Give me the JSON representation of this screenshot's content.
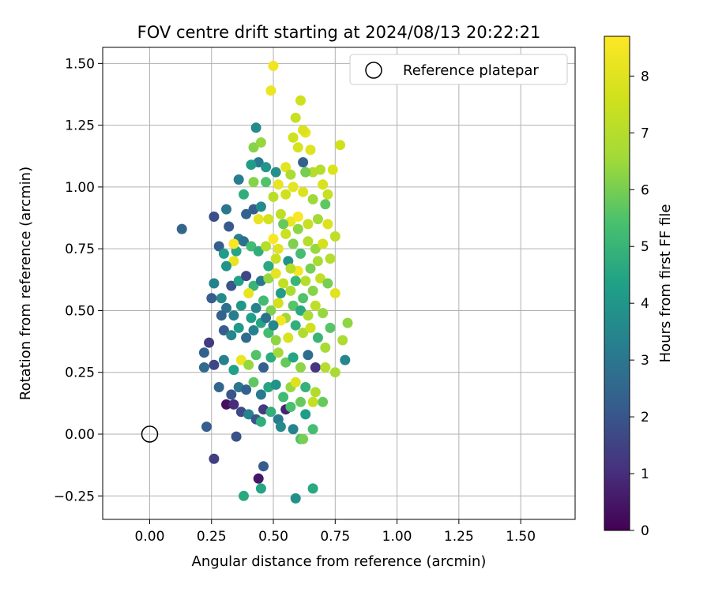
{
  "chart_data": {
    "type": "scatter",
    "title": "FOV centre drift starting at 2024/08/13 20:22:21",
    "xlabel": "Angular distance from reference (arcmin)",
    "ylabel": "Rotation from reference (arcmin)",
    "xlim": [
      -0.19,
      1.72
    ],
    "ylim": [
      -0.345,
      1.565
    ],
    "xticks": [
      "0.00",
      "0.25",
      "0.50",
      "0.75",
      "1.00",
      "1.25",
      "1.50"
    ],
    "yticks": [
      "−0.25",
      "0.00",
      "0.25",
      "0.50",
      "0.75",
      "1.00",
      "1.25",
      "1.50"
    ],
    "grid": true,
    "legend": {
      "position": "top-right",
      "entries": [
        "Reference platepar"
      ]
    },
    "colorbar": {
      "label": "Hours from first FF file",
      "colormap": "viridis",
      "range": [
        0,
        8.7
      ],
      "ticks": [
        "0",
        "1",
        "2",
        "3",
        "4",
        "5",
        "6",
        "7",
        "8"
      ]
    },
    "reference_point": {
      "x": 0.0,
      "y": 0.0,
      "label": "Reference platepar"
    },
    "series": [
      {
        "note_columns": "x, y, hours",
        "points": [
          [
            0.13,
            0.83,
            2.5
          ],
          [
            0.26,
            0.88,
            1.8
          ],
          [
            0.31,
            0.91,
            3.0
          ],
          [
            0.28,
            0.76,
            2.2
          ],
          [
            0.32,
            0.84,
            2.1
          ],
          [
            0.36,
            1.03,
            3.2
          ],
          [
            0.43,
            1.24,
            3.6
          ],
          [
            0.42,
            1.16,
            6.2
          ],
          [
            0.45,
            1.18,
            6.4
          ],
          [
            0.44,
            1.1,
            3.1
          ],
          [
            0.47,
            1.08,
            4.0
          ],
          [
            0.5,
            1.49,
            8.4
          ],
          [
            0.49,
            1.39,
            8.3
          ],
          [
            0.61,
            1.35,
            7.6
          ],
          [
            0.59,
            1.28,
            7.4
          ],
          [
            0.63,
            1.22,
            8.2
          ],
          [
            0.62,
            1.23,
            7.9
          ],
          [
            0.58,
            1.2,
            7.6
          ],
          [
            0.6,
            1.16,
            7.8
          ],
          [
            0.65,
            1.15,
            8.0
          ],
          [
            0.77,
            1.17,
            7.6
          ],
          [
            0.74,
            1.07,
            7.9
          ],
          [
            0.69,
            1.07,
            7.0
          ],
          [
            0.7,
            1.01,
            7.8
          ],
          [
            0.72,
            0.97,
            7.4
          ],
          [
            0.66,
            1.06,
            7.0
          ],
          [
            0.63,
            1.06,
            6.0
          ],
          [
            0.62,
            1.1,
            2.4
          ],
          [
            0.55,
            1.08,
            8.1
          ],
          [
            0.57,
            1.05,
            6.8
          ],
          [
            0.51,
            1.06,
            3.8
          ],
          [
            0.47,
            1.02,
            5.5
          ],
          [
            0.41,
            1.09,
            4.2
          ],
          [
            0.42,
            1.02,
            6.2
          ],
          [
            0.52,
            1.01,
            8.2
          ],
          [
            0.5,
            0.96,
            7.1
          ],
          [
            0.55,
            0.97,
            7.6
          ],
          [
            0.58,
            1.0,
            8.1
          ],
          [
            0.62,
            0.98,
            7.9
          ],
          [
            0.66,
            0.95,
            6.5
          ],
          [
            0.71,
            0.93,
            5.7
          ],
          [
            0.38,
            0.97,
            4.8
          ],
          [
            0.42,
            0.91,
            2.2
          ],
          [
            0.45,
            0.92,
            3.6
          ],
          [
            0.39,
            0.89,
            2.4
          ],
          [
            0.44,
            0.87,
            8.2
          ],
          [
            0.48,
            0.87,
            7.7
          ],
          [
            0.53,
            0.89,
            7.2
          ],
          [
            0.57,
            0.86,
            8.3
          ],
          [
            0.6,
            0.88,
            8.6
          ],
          [
            0.64,
            0.85,
            7.4
          ],
          [
            0.68,
            0.87,
            6.6
          ],
          [
            0.72,
            0.85,
            7.9
          ],
          [
            0.75,
            0.8,
            7.2
          ],
          [
            0.36,
            0.79,
            3.3
          ],
          [
            0.35,
            0.74,
            4.5
          ],
          [
            0.38,
            0.78,
            2.8
          ],
          [
            0.41,
            0.76,
            5.2
          ],
          [
            0.44,
            0.74,
            4.8
          ],
          [
            0.47,
            0.76,
            7.0
          ],
          [
            0.5,
            0.79,
            8.6
          ],
          [
            0.52,
            0.75,
            8.0
          ],
          [
            0.55,
            0.81,
            7.5
          ],
          [
            0.58,
            0.77,
            6.1
          ],
          [
            0.61,
            0.73,
            5.3
          ],
          [
            0.64,
            0.78,
            7.0
          ],
          [
            0.67,
            0.75,
            6.4
          ],
          [
            0.7,
            0.77,
            7.7
          ],
          [
            0.73,
            0.71,
            7.0
          ],
          [
            0.34,
            0.77,
            8.6
          ],
          [
            0.34,
            0.7,
            8.2
          ],
          [
            0.31,
            0.68,
            3.9
          ],
          [
            0.3,
            0.73,
            4.2
          ],
          [
            0.26,
            0.61,
            3.3
          ],
          [
            0.25,
            0.55,
            2.2
          ],
          [
            0.29,
            0.55,
            3.6
          ],
          [
            0.33,
            0.6,
            2.0
          ],
          [
            0.36,
            0.62,
            4.4
          ],
          [
            0.39,
            0.64,
            1.6
          ],
          [
            0.42,
            0.6,
            5.0
          ],
          [
            0.45,
            0.62,
            3.0
          ],
          [
            0.48,
            0.63,
            6.4
          ],
          [
            0.51,
            0.65,
            8.1
          ],
          [
            0.54,
            0.61,
            7.3
          ],
          [
            0.57,
            0.58,
            6.8
          ],
          [
            0.6,
            0.66,
            8.5
          ],
          [
            0.63,
            0.62,
            7.0
          ],
          [
            0.66,
            0.58,
            6.2
          ],
          [
            0.69,
            0.63,
            7.3
          ],
          [
            0.72,
            0.61,
            6.0
          ],
          [
            0.75,
            0.57,
            8.0
          ],
          [
            0.31,
            0.51,
            2.8
          ],
          [
            0.34,
            0.48,
            3.2
          ],
          [
            0.37,
            0.52,
            4.0
          ],
          [
            0.4,
            0.57,
            8.2
          ],
          [
            0.43,
            0.51,
            3.4
          ],
          [
            0.46,
            0.54,
            5.2
          ],
          [
            0.49,
            0.5,
            6.1
          ],
          [
            0.52,
            0.53,
            7.7
          ],
          [
            0.55,
            0.47,
            6.5
          ],
          [
            0.58,
            0.52,
            5.6
          ],
          [
            0.61,
            0.5,
            4.6
          ],
          [
            0.64,
            0.48,
            6.8
          ],
          [
            0.67,
            0.52,
            7.2
          ],
          [
            0.7,
            0.49,
            6.4
          ],
          [
            0.73,
            0.43,
            5.6
          ],
          [
            0.29,
            0.48,
            2.4
          ],
          [
            0.3,
            0.42,
            2.2
          ],
          [
            0.33,
            0.4,
            3.5
          ],
          [
            0.36,
            0.43,
            4.1
          ],
          [
            0.39,
            0.39,
            2.6
          ],
          [
            0.42,
            0.42,
            3.3
          ],
          [
            0.45,
            0.45,
            4.5
          ],
          [
            0.48,
            0.41,
            5.3
          ],
          [
            0.51,
            0.38,
            6.3
          ],
          [
            0.53,
            0.46,
            8.5
          ],
          [
            0.56,
            0.39,
            7.8
          ],
          [
            0.59,
            0.44,
            4.8
          ],
          [
            0.62,
            0.41,
            6.9
          ],
          [
            0.65,
            0.43,
            7.6
          ],
          [
            0.68,
            0.39,
            5.0
          ],
          [
            0.71,
            0.35,
            6.7
          ],
          [
            0.78,
            0.38,
            6.8
          ],
          [
            0.8,
            0.45,
            6.3
          ],
          [
            0.79,
            0.3,
            3.5
          ],
          [
            0.22,
            0.33,
            2.3
          ],
          [
            0.24,
            0.37,
            1.3
          ],
          [
            0.22,
            0.27,
            2.6
          ],
          [
            0.26,
            0.28,
            1.6
          ],
          [
            0.3,
            0.3,
            3.3
          ],
          [
            0.34,
            0.26,
            4.4
          ],
          [
            0.37,
            0.3,
            8.3
          ],
          [
            0.4,
            0.28,
            6.4
          ],
          [
            0.43,
            0.32,
            5.5
          ],
          [
            0.46,
            0.27,
            2.3
          ],
          [
            0.49,
            0.31,
            4.7
          ],
          [
            0.52,
            0.33,
            6.6
          ],
          [
            0.55,
            0.29,
            5.8
          ],
          [
            0.58,
            0.31,
            4.5
          ],
          [
            0.61,
            0.27,
            6.3
          ],
          [
            0.64,
            0.32,
            2.7
          ],
          [
            0.67,
            0.27,
            1.2
          ],
          [
            0.71,
            0.27,
            7.0
          ],
          [
            0.75,
            0.25,
            6.7
          ],
          [
            0.28,
            0.19,
            2.5
          ],
          [
            0.33,
            0.16,
            2.0
          ],
          [
            0.36,
            0.19,
            3.0
          ],
          [
            0.39,
            0.18,
            2.3
          ],
          [
            0.42,
            0.21,
            5.7
          ],
          [
            0.45,
            0.16,
            3.1
          ],
          [
            0.48,
            0.19,
            4.5
          ],
          [
            0.51,
            0.2,
            3.9
          ],
          [
            0.54,
            0.15,
            5.2
          ],
          [
            0.57,
            0.19,
            6.4
          ],
          [
            0.59,
            0.21,
            7.9
          ],
          [
            0.63,
            0.19,
            4.9
          ],
          [
            0.67,
            0.17,
            6.9
          ],
          [
            0.7,
            0.13,
            5.8
          ],
          [
            0.31,
            0.12,
            0.3
          ],
          [
            0.34,
            0.12,
            1.0
          ],
          [
            0.37,
            0.09,
            1.7
          ],
          [
            0.4,
            0.08,
            3.4
          ],
          [
            0.43,
            0.06,
            2.0
          ],
          [
            0.46,
            0.1,
            1.3
          ],
          [
            0.49,
            0.09,
            4.8
          ],
          [
            0.52,
            0.06,
            3.1
          ],
          [
            0.55,
            0.1,
            0.8
          ],
          [
            0.57,
            0.11,
            5.4
          ],
          [
            0.61,
            0.13,
            5.8
          ],
          [
            0.63,
            0.08,
            4.2
          ],
          [
            0.66,
            0.13,
            7.3
          ],
          [
            0.45,
            0.05,
            4.8
          ],
          [
            0.53,
            0.03,
            3.6
          ],
          [
            0.58,
            0.02,
            3.4
          ],
          [
            0.61,
            -0.02,
            5.4
          ],
          [
            0.62,
            -0.02,
            6.0
          ],
          [
            0.66,
            0.02,
            5.3
          ],
          [
            0.23,
            0.03,
            2.2
          ],
          [
            0.35,
            -0.01,
            1.9
          ],
          [
            0.26,
            -0.1,
            1.4
          ],
          [
            0.46,
            -0.13,
            2.2
          ],
          [
            0.44,
            -0.18,
            0.5
          ],
          [
            0.45,
            -0.22,
            4.5
          ],
          [
            0.38,
            -0.25,
            4.6
          ],
          [
            0.59,
            -0.26,
            3.8
          ],
          [
            0.66,
            -0.22,
            4.6
          ],
          [
            0.53,
            0.57,
            4.2
          ],
          [
            0.56,
            0.7,
            3.8
          ],
          [
            0.48,
            0.68,
            4.6
          ],
          [
            0.59,
            0.62,
            5.0
          ],
          [
            0.62,
            0.55,
            5.5
          ],
          [
            0.65,
            0.67,
            6.0
          ],
          [
            0.47,
            0.47,
            2.8
          ],
          [
            0.5,
            0.44,
            3.5
          ],
          [
            0.41,
            0.47,
            4.3
          ],
          [
            0.54,
            0.85,
            5.8
          ],
          [
            0.6,
            0.83,
            6.3
          ],
          [
            0.51,
            0.71,
            7.4
          ],
          [
            0.57,
            0.67,
            7.0
          ],
          [
            0.68,
            0.7,
            6.7
          ]
        ]
      }
    ]
  }
}
